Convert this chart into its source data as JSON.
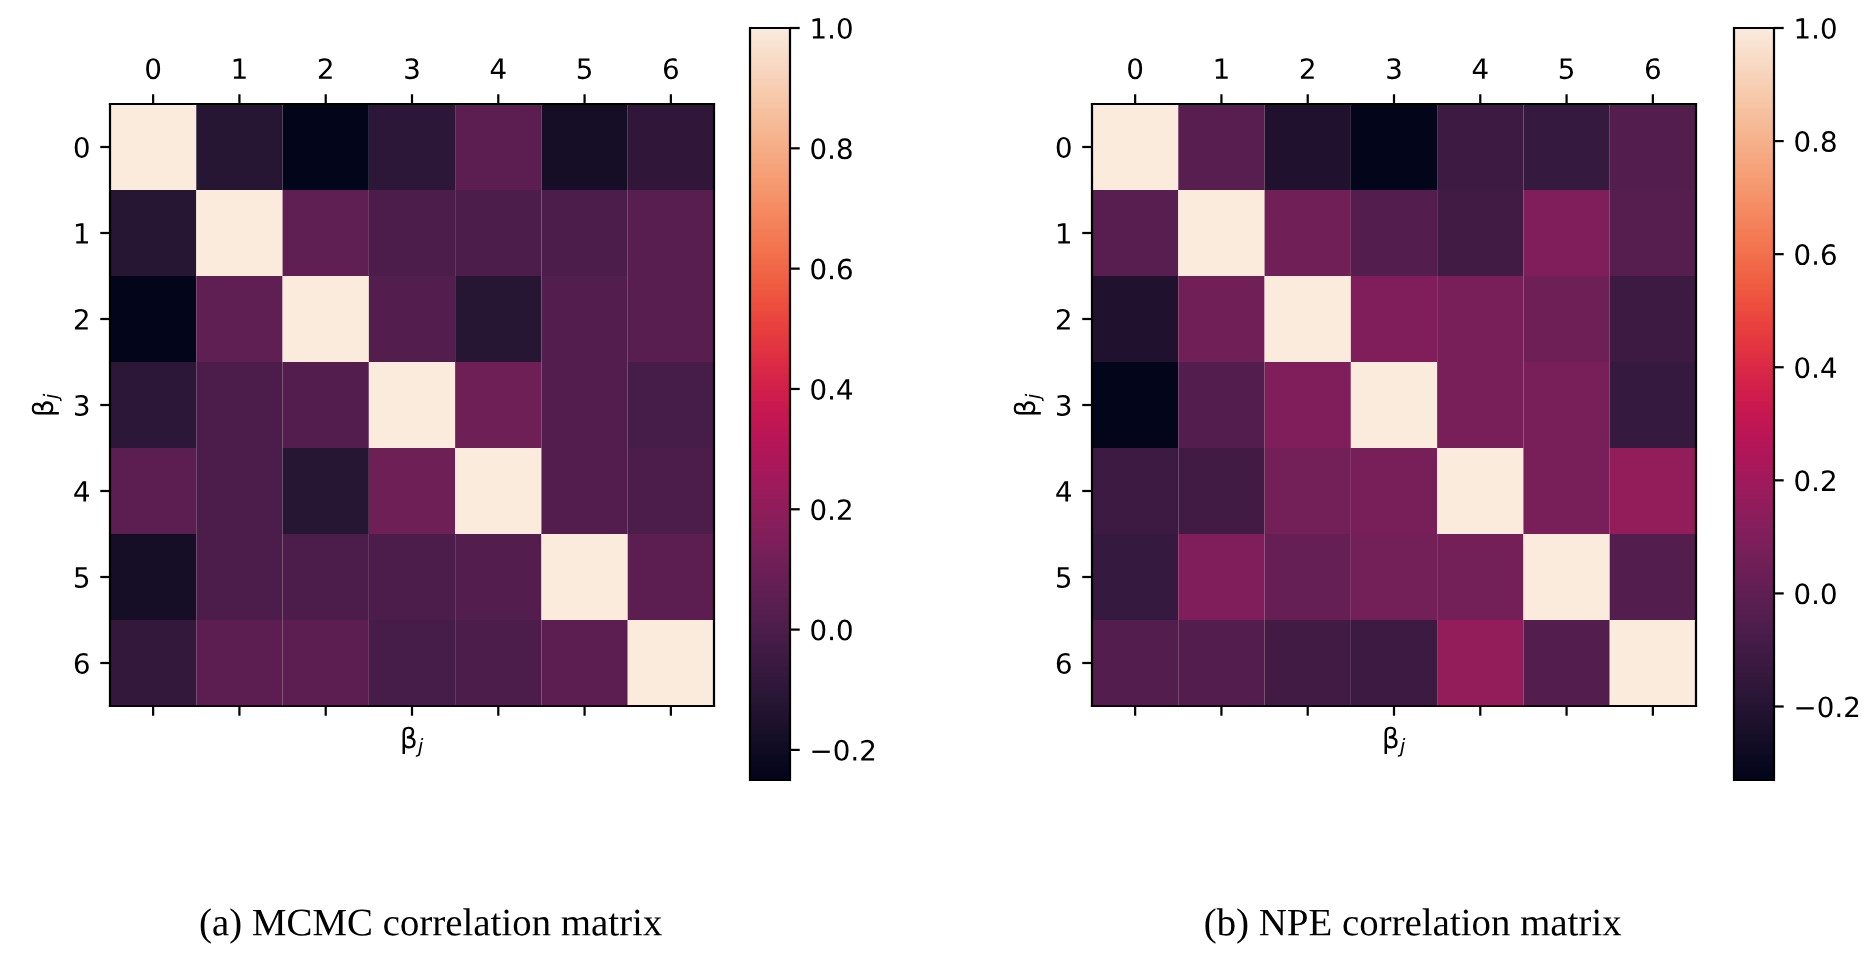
{
  "chart_data": [
    {
      "type": "heatmap",
      "xlabel": "β$_{j}$",
      "ylabel": "β$_{j}$",
      "categories": [
        "0",
        "1",
        "2",
        "3",
        "4",
        "5",
        "6"
      ],
      "y_categories": [
        "0",
        "1",
        "2",
        "3",
        "4",
        "5",
        "6"
      ],
      "cells": [
        [
          1,
          -0.12,
          -0.25,
          -0.1,
          0.05,
          -0.18,
          -0.09
        ],
        [
          -0.12,
          1,
          0.06,
          0.0,
          0.0,
          0.0,
          0.04
        ],
        [
          -0.25,
          0.06,
          1,
          0.02,
          -0.12,
          0.02,
          0.04
        ],
        [
          -0.1,
          0.0,
          0.02,
          1,
          0.1,
          0.02,
          -0.02
        ],
        [
          0.05,
          0.0,
          -0.12,
          0.1,
          1,
          0.02,
          0.0
        ],
        [
          -0.18,
          0.0,
          0.0,
          0.0,
          0.02,
          1,
          0.05
        ],
        [
          -0.08,
          0.05,
          0.05,
          -0.02,
          0.0,
          0.05,
          1
        ]
      ],
      "clim": [
        -0.25,
        1.0
      ],
      "cticks": [
        {
          "value": -0.2,
          "label": "−0.2"
        },
        {
          "value": 0.0,
          "label": "0.0"
        },
        {
          "value": 0.2,
          "label": "0.2"
        },
        {
          "value": 0.4,
          "label": "0.4"
        },
        {
          "value": 0.6,
          "label": "0.6"
        },
        {
          "value": 0.8,
          "label": "0.8"
        },
        {
          "value": 1.0,
          "label": "1.0"
        }
      ],
      "annotations": [
        "(a) MCMC correlation matrix"
      ]
    },
    {
      "type": "heatmap",
      "xlabel": "β$_{j}$",
      "ylabel": "β$_{j}$",
      "categories": [
        "0",
        "1",
        "2",
        "3",
        "4",
        "5",
        "6"
      ],
      "y_categories": [
        "0",
        "1",
        "2",
        "3",
        "4",
        "5",
        "6"
      ],
      "cells": [
        [
          1,
          -0.02,
          -0.22,
          -0.33,
          -0.12,
          -0.14,
          -0.04
        ],
        [
          -0.02,
          1,
          0.05,
          -0.04,
          -0.1,
          0.1,
          -0.03
        ],
        [
          -0.22,
          0.05,
          1,
          0.1,
          0.08,
          0.04,
          -0.12
        ],
        [
          -0.33,
          -0.04,
          0.1,
          1,
          0.08,
          0.08,
          -0.14
        ],
        [
          -0.12,
          -0.1,
          0.06,
          0.08,
          1,
          0.08,
          0.16
        ],
        [
          -0.14,
          0.1,
          0.02,
          0.06,
          0.06,
          1,
          -0.04
        ],
        [
          -0.04,
          -0.04,
          -0.1,
          -0.12,
          0.16,
          -0.04,
          1
        ]
      ],
      "clim": [
        -0.33,
        1.0
      ],
      "cticks": [
        {
          "value": -0.2,
          "label": "−0.2"
        },
        {
          "value": 0.0,
          "label": "0.0"
        },
        {
          "value": 0.2,
          "label": "0.2"
        },
        {
          "value": 0.4,
          "label": "0.4"
        },
        {
          "value": 0.6,
          "label": "0.6"
        },
        {
          "value": 0.8,
          "label": "0.8"
        },
        {
          "value": 1.0,
          "label": "1.0"
        }
      ],
      "annotations": [
        "(b) NPE correlation matrix"
      ]
    }
  ]
}
